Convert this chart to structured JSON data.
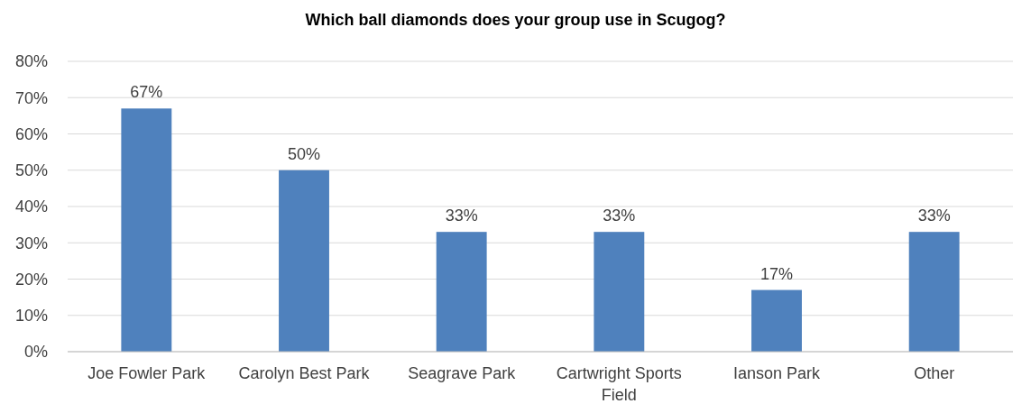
{
  "chart_data": {
    "type": "bar",
    "title": "Which ball diamonds does your group use in Scugog?",
    "categories": [
      "Joe Fowler Park",
      "Carolyn Best Park",
      "Seagrave Park",
      "Cartwright Sports Field",
      "Ianson Park",
      "Other"
    ],
    "values": [
      67,
      50,
      33,
      33,
      17,
      33
    ],
    "value_labels": [
      "67%",
      "50%",
      "33%",
      "33%",
      "17%",
      "33%"
    ],
    "color": "#4f81bd",
    "ylim": [
      0,
      80
    ],
    "yticks": [
      {
        "value": 0,
        "label": "0%"
      },
      {
        "value": 10,
        "label": "10%"
      },
      {
        "value": 20,
        "label": "20%"
      },
      {
        "value": 30,
        "label": "30%"
      },
      {
        "value": 40,
        "label": "40%"
      },
      {
        "value": 50,
        "label": "50%"
      },
      {
        "value": 60,
        "label": "60%"
      },
      {
        "value": 70,
        "label": "70%"
      },
      {
        "value": 80,
        "label": "80%"
      }
    ],
    "grid": "y"
  }
}
